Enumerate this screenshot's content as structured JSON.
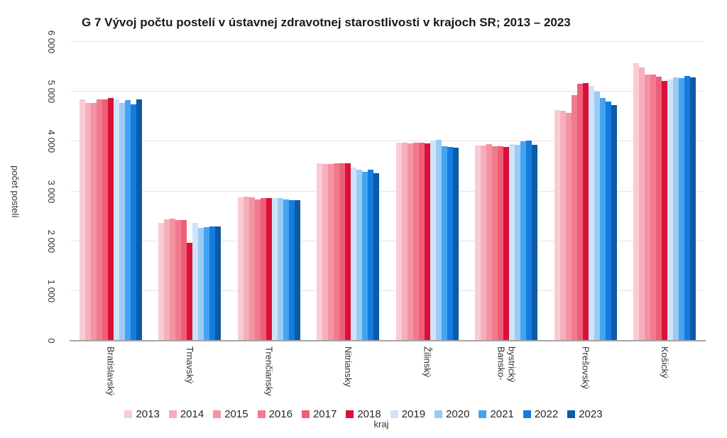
{
  "title": "G 7 Vývoj počtu postelí v ústavnej zdravotnej starostlivosti v krajoch SR; 2013 – 2023",
  "chart_data": {
    "type": "bar",
    "title": "G 7 Vývoj počtu postelí v ústavnej zdravotnej starostlivosti v krajoch SR; 2013 – 2023",
    "xlabel": "kraj",
    "ylabel": "počet postelí",
    "ylim": [
      0,
      6000
    ],
    "ytick_step": 1000,
    "ytick_labels": [
      "0",
      "1 000",
      "2 000",
      "3 000",
      "4 000",
      "5 000",
      "6 000"
    ],
    "grid": true,
    "legend_position": "bottom",
    "categories": [
      "Bratislavský",
      "Trnavský",
      "Trenčiansky",
      "Nitriansky",
      "Žilinský",
      "Bansko-\nbystrický",
      "Prešovský",
      "Košický"
    ],
    "series": [
      {
        "name": "2013",
        "color": "#f9ccd4",
        "values": [
          4850,
          2370,
          2880,
          3570,
          3980,
          3920,
          4630,
          5570
        ]
      },
      {
        "name": "2014",
        "color": "#f7aebb",
        "values": [
          4770,
          2440,
          2900,
          3550,
          3980,
          3920,
          4620,
          5490
        ]
      },
      {
        "name": "2015",
        "color": "#f493a3",
        "values": [
          4780,
          2450,
          2880,
          3550,
          3960,
          3950,
          4570,
          5340
        ]
      },
      {
        "name": "2016",
        "color": "#f17a8e",
        "values": [
          4840,
          2420,
          2840,
          3570,
          3970,
          3910,
          4930,
          5350
        ]
      },
      {
        "name": "2017",
        "color": "#ee5f77",
        "values": [
          4850,
          2430,
          2860,
          3570,
          3980,
          3910,
          5160,
          5300
        ]
      },
      {
        "name": "2018",
        "color": "#d9113a",
        "values": [
          4870,
          1970,
          2870,
          3570,
          3960,
          3890,
          5170,
          5220
        ]
      },
      {
        "name": "2019",
        "color": "#cfe3f8",
        "values": [
          4850,
          2360,
          2860,
          3480,
          4020,
          3950,
          5120,
          5250
        ]
      },
      {
        "name": "2020",
        "color": "#9bcbf3",
        "values": [
          4770,
          2260,
          2870,
          3440,
          4030,
          3940,
          5000,
          5290
        ]
      },
      {
        "name": "2021",
        "color": "#43a4f2",
        "values": [
          4830,
          2280,
          2840,
          3390,
          3910,
          4000,
          4870,
          5280
        ]
      },
      {
        "name": "2022",
        "color": "#157cdf",
        "values": [
          4750,
          2300,
          2820,
          3430,
          3890,
          4020,
          4800,
          5320
        ]
      },
      {
        "name": "2023",
        "color": "#0d5aa6",
        "values": [
          4850,
          2300,
          2820,
          3360,
          3870,
          3940,
          4730,
          5290
        ]
      }
    ]
  }
}
